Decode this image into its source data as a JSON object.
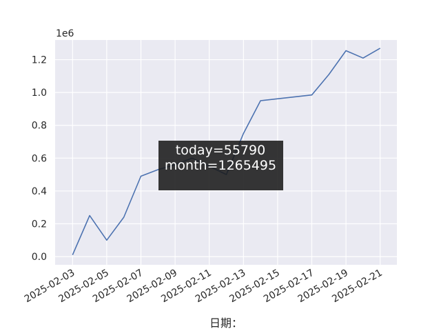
{
  "chart_data": {
    "type": "line",
    "title": "",
    "xlabel": "日期：",
    "ylabel": "",
    "y_offset_label": "1e6",
    "ylim": [
      -0.05,
      1.32
    ],
    "y_ticks": [
      0.0,
      0.2,
      0.4,
      0.6,
      0.8,
      1.0,
      1.2
    ],
    "y_tick_labels": [
      "0.0",
      "0.2",
      "0.4",
      "0.6",
      "0.8",
      "1.0",
      "1.2"
    ],
    "x_tick_labels": [
      "2025-02-03",
      "2025-02-05",
      "2025-02-07",
      "2025-02-09",
      "2025-02-11",
      "2025-02-13",
      "2025-02-15",
      "2025-02-17",
      "2025-02-19",
      "2025-02-21"
    ],
    "grid": true,
    "line_color": "#4c72b0",
    "background_color": "#eaeaf2",
    "series": [
      {
        "x": [
          "2025-02-03",
          "2025-02-04",
          "2025-02-05",
          "2025-02-06",
          "2025-02-07",
          "2025-02-08",
          "2025-02-09",
          "2025-02-10",
          "2025-02-11",
          "2025-02-12",
          "2025-02-13",
          "2025-02-14",
          "2025-02-17",
          "2025-02-18",
          "2025-02-19",
          "2025-02-20",
          "2025-02-21"
        ],
        "values": [
          0.01,
          0.25,
          0.1,
          0.24,
          0.49,
          0.53,
          0.56,
          0.6,
          0.55,
          0.5,
          0.75,
          0.95,
          0.985,
          1.11,
          1.255,
          1.21,
          1.27
        ]
      }
    ],
    "annotation": {
      "line1": "today=55790",
      "line2": "month=1265495",
      "placement": "center"
    }
  }
}
